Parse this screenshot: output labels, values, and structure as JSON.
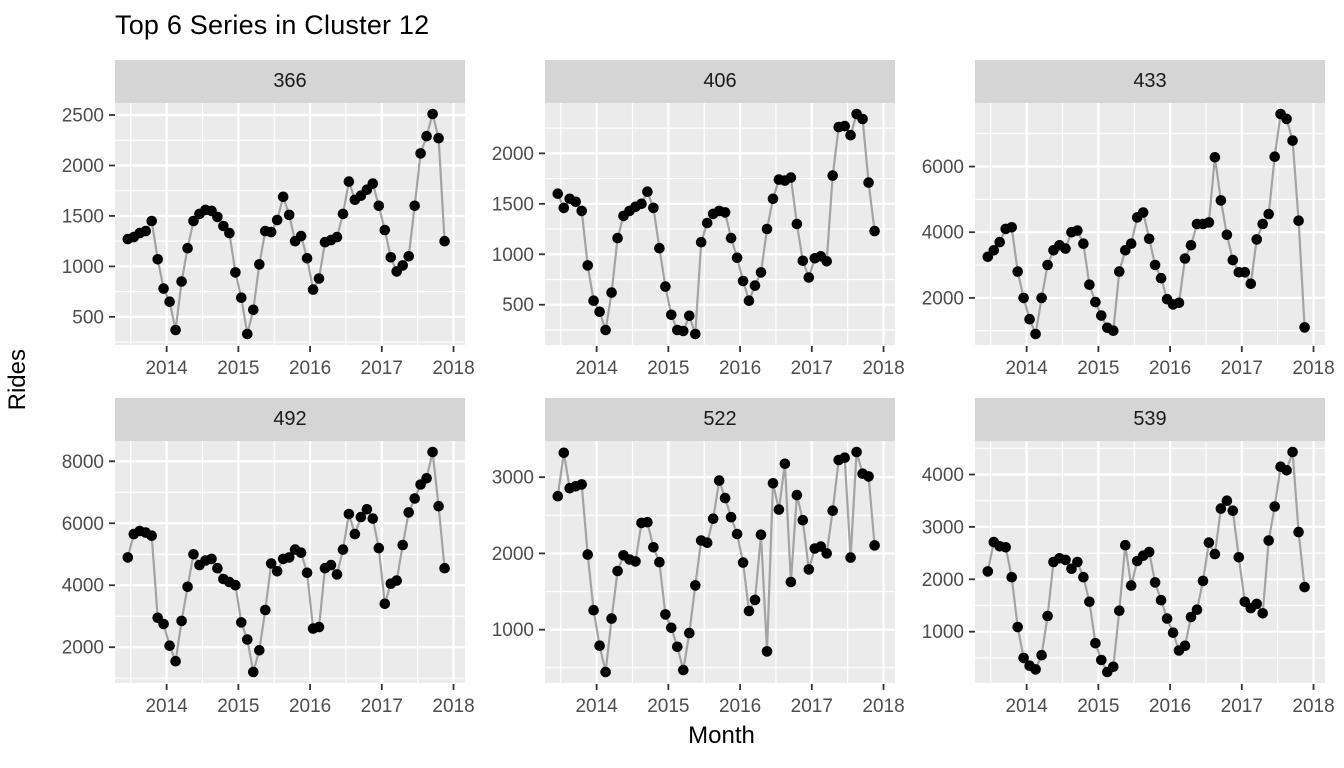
{
  "page": {
    "background": "#FFFFFF"
  },
  "chart_data": {
    "type": "line",
    "title": "Top 6 Series in Cluster 12",
    "xlabel": "Month",
    "ylabel": "Rides",
    "x_start": 2013.4583,
    "x_step": 0.0833333,
    "xlim": [
      2013.28,
      2018.16
    ],
    "x_ticks": [
      2014,
      2015,
      2016,
      2017,
      2018
    ],
    "x_minor": [
      2013.5,
      2014.5,
      2015.5,
      2016.5,
      2017.5
    ],
    "grid": "on",
    "legend": "none",
    "style": {
      "panel_bg": "#EBEBEB",
      "strip_bg": "#D5D5D5",
      "grid_color": "#FFFFFF",
      "line_color": "#A3A3A3",
      "point_color": "#000000",
      "axis_text_color": "#4D4D4D",
      "tick_mark_color": "#333333",
      "title_color": "#000000"
    },
    "facets": [
      {
        "label": "366",
        "y_ticks": [
          500,
          1000,
          1500,
          2000,
          2500
        ],
        "values": [
          1270,
          1290,
          1330,
          1350,
          1450,
          1070,
          780,
          650,
          370,
          850,
          1180,
          1450,
          1520,
          1560,
          1550,
          1490,
          1400,
          1330,
          940,
          690,
          330,
          570,
          1020,
          1350,
          1340,
          1460,
          1690,
          1510,
          1250,
          1300,
          1080,
          770,
          880,
          1240,
          1260,
          1290,
          1520,
          1840,
          1660,
          1700,
          1760,
          1820,
          1600,
          1360,
          1090,
          950,
          1010,
          1100,
          1600,
          2120,
          2290,
          2510,
          2270,
          1250
        ]
      },
      {
        "label": "406",
        "y_ticks": [
          500,
          1000,
          1500,
          2000
        ],
        "values": [
          1600,
          1460,
          1550,
          1520,
          1430,
          890,
          540,
          430,
          250,
          620,
          1160,
          1380,
          1430,
          1470,
          1500,
          1620,
          1460,
          1060,
          680,
          400,
          250,
          240,
          390,
          210,
          1120,
          1310,
          1400,
          1430,
          1415,
          1160,
          965,
          735,
          540,
          690,
          820,
          1250,
          1550,
          1740,
          1730,
          1760,
          1300,
          935,
          770,
          960,
          980,
          930,
          1780,
          2260,
          2270,
          2180,
          2390,
          2340,
          1710,
          1230
        ]
      },
      {
        "label": "433",
        "y_ticks": [
          2000,
          4000,
          6000
        ],
        "values": [
          3250,
          3450,
          3700,
          4100,
          4150,
          2800,
          2000,
          1350,
          900,
          2000,
          3000,
          3450,
          3600,
          3500,
          4000,
          4050,
          3650,
          2400,
          1870,
          1460,
          1090,
          1000,
          2800,
          3450,
          3650,
          4450,
          4600,
          3800,
          3000,
          2600,
          1960,
          1800,
          1850,
          3200,
          3600,
          4250,
          4250,
          4300,
          6280,
          4970,
          3920,
          3150,
          2780,
          2780,
          2430,
          3780,
          4250,
          4550,
          6300,
          7600,
          7450,
          6790,
          4350,
          1100
        ]
      },
      {
        "label": "492",
        "y_ticks": [
          2000,
          4000,
          6000,
          8000
        ],
        "values": [
          4900,
          5650,
          5750,
          5700,
          5600,
          2950,
          2750,
          2050,
          1550,
          2850,
          3950,
          5000,
          4650,
          4800,
          4850,
          4550,
          4200,
          4100,
          4000,
          2800,
          2250,
          1200,
          1900,
          3200,
          4700,
          4450,
          4850,
          4900,
          5150,
          5050,
          4400,
          2600,
          2650,
          4550,
          4650,
          4350,
          5150,
          6300,
          5650,
          6200,
          6450,
          6150,
          5200,
          3400,
          4050,
          4150,
          5300,
          6350,
          6800,
          7250,
          7450,
          8300,
          6550,
          4550
        ]
      },
      {
        "label": "522",
        "y_ticks": [
          1000,
          2000,
          3000
        ],
        "values": [
          2750,
          3320,
          2855,
          2880,
          2905,
          1985,
          1255,
          790,
          445,
          1145,
          1770,
          1975,
          1920,
          1895,
          2400,
          2410,
          2080,
          1885,
          1200,
          1025,
          775,
          470,
          955,
          1580,
          2170,
          2140,
          2455,
          2955,
          2725,
          2475,
          2255,
          1880,
          1245,
          1390,
          2245,
          715,
          2920,
          2575,
          3175,
          1625,
          2765,
          2435,
          1790,
          2065,
          2090,
          2000,
          2560,
          3225,
          3255,
          1945,
          3330,
          3045,
          3010,
          2105
        ]
      },
      {
        "label": "539",
        "y_ticks": [
          1000,
          2000,
          3000,
          4000
        ],
        "values": [
          2150,
          2710,
          2630,
          2610,
          2040,
          1090,
          500,
          350,
          280,
          550,
          1300,
          2330,
          2400,
          2370,
          2200,
          2330,
          2040,
          1570,
          780,
          460,
          230,
          330,
          1400,
          2650,
          1880,
          2350,
          2450,
          2520,
          1940,
          1600,
          1250,
          980,
          640,
          730,
          1280,
          1420,
          1970,
          2700,
          2480,
          3350,
          3500,
          3310,
          2420,
          1570,
          1450,
          1530,
          1350,
          2740,
          3390,
          4150,
          4080,
          4430,
          2900,
          1850
        ]
      }
    ]
  }
}
